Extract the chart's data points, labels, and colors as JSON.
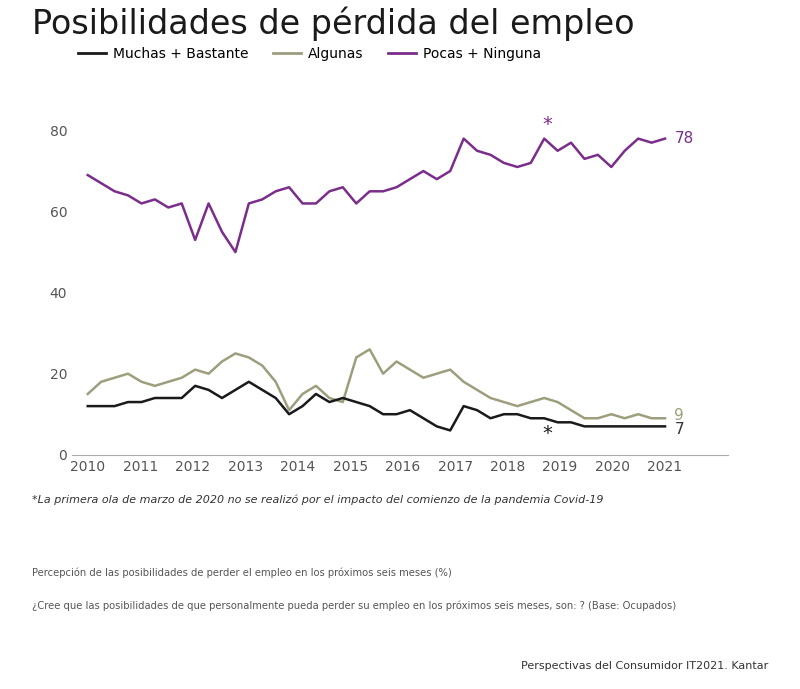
{
  "title": "Posibilidades de pérdida del empleo",
  "title_bar_color": "#7B2D8B",
  "background_color": "#ffffff",
  "ylim": [
    0,
    85
  ],
  "yticks": [
    0,
    20,
    40,
    60,
    80
  ],
  "xlabel_years": [
    "2010",
    "2011",
    "2012",
    "2013",
    "2014",
    "2015",
    "2016",
    "2017",
    "2018",
    "2019",
    "2020",
    "2021"
  ],
  "legend_entries": [
    "Muchas + Bastante",
    "Algunas",
    "Pocas + Ninguna"
  ],
  "legend_colors": [
    "#1a1a1a",
    "#9E9E7E",
    "#7B2D8B"
  ],
  "footnote1": "*La primera ola de marzo de 2020 no se realizó por el impacto del comienzo de la pandemia Covid-19",
  "footnote2": "Percepción de las posibilidades de perder el empleo en los próximos seis meses (%)",
  "footnote3": "¿Cree que las posibilidades de que personalmente pueda perder su empleo en los próximos seis meses, son: ? (Base: Ocupados)",
  "footnote4": "Perspectivas del Consumidor IT2021. Kantar",
  "pocas_data": [
    69,
    67,
    65,
    64,
    62,
    63,
    61,
    62,
    53,
    62,
    55,
    50,
    62,
    63,
    65,
    66,
    62,
    62,
    65,
    66,
    62,
    65,
    65,
    66,
    68,
    70,
    68,
    70,
    78,
    75,
    74,
    72,
    71,
    72,
    78,
    75,
    77,
    73,
    74,
    71,
    75,
    78,
    77,
    78
  ],
  "algunas_data": [
    15,
    18,
    19,
    20,
    18,
    17,
    18,
    19,
    21,
    20,
    23,
    25,
    24,
    22,
    18,
    11,
    15,
    17,
    14,
    13,
    24,
    26,
    20,
    23,
    21,
    19,
    20,
    21,
    18,
    16,
    14,
    13,
    12,
    13,
    14,
    13,
    11,
    9,
    9,
    10,
    9,
    10,
    9,
    9
  ],
  "muchas_data": [
    12,
    12,
    12,
    13,
    13,
    14,
    14,
    14,
    17,
    16,
    14,
    16,
    18,
    16,
    14,
    10,
    12,
    15,
    13,
    14,
    13,
    12,
    10,
    10,
    11,
    9,
    7,
    6,
    12,
    11,
    9,
    10,
    10,
    9,
    9,
    8,
    8,
    7,
    7,
    7,
    7,
    7,
    7,
    7
  ],
  "pocas_star_idx": 34,
  "muchas_star_idx": 34,
  "last_values": {
    "pocas": 78,
    "algunas": 9,
    "muchas": 7
  }
}
